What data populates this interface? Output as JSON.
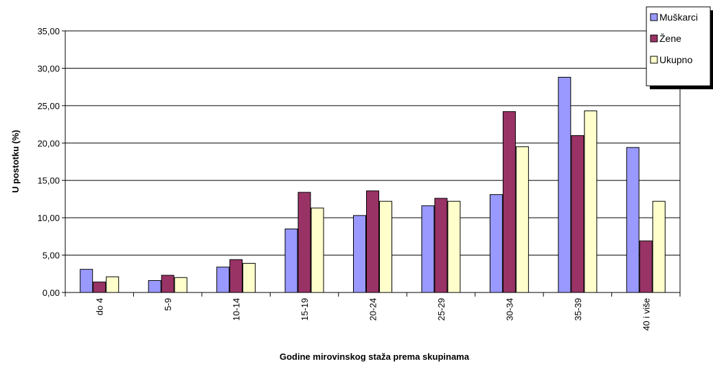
{
  "chart_data": {
    "type": "bar",
    "categories": [
      "do 4",
      "5-9",
      "10-14",
      "15-19",
      "20-24",
      "25-29",
      "30-34",
      "35-39",
      "40 i više"
    ],
    "series": [
      {
        "name": "Muškarci",
        "color": "#9999FF",
        "values": [
          3.1,
          1.6,
          3.4,
          8.5,
          10.3,
          11.6,
          13.1,
          28.8,
          19.4
        ]
      },
      {
        "name": "Žene",
        "color": "#993366",
        "values": [
          1.4,
          2.3,
          4.4,
          13.4,
          13.6,
          12.6,
          24.2,
          21.0,
          6.9
        ]
      },
      {
        "name": "Ukupno",
        "color": "#FFFFCC",
        "values": [
          2.1,
          2.0,
          3.9,
          11.3,
          12.2,
          12.2,
          19.5,
          24.3,
          12.2
        ]
      }
    ],
    "xlabel": "Godine mirovinskog staža prema skupinama",
    "ylabel": "U postotku (%)",
    "ylim": [
      0,
      35
    ],
    "yticks": [
      "0,00",
      "5,00",
      "10,00",
      "15,00",
      "20,00",
      "25,00",
      "30,00",
      "35,00"
    ],
    "grid": true,
    "legend_position": "top-right"
  }
}
